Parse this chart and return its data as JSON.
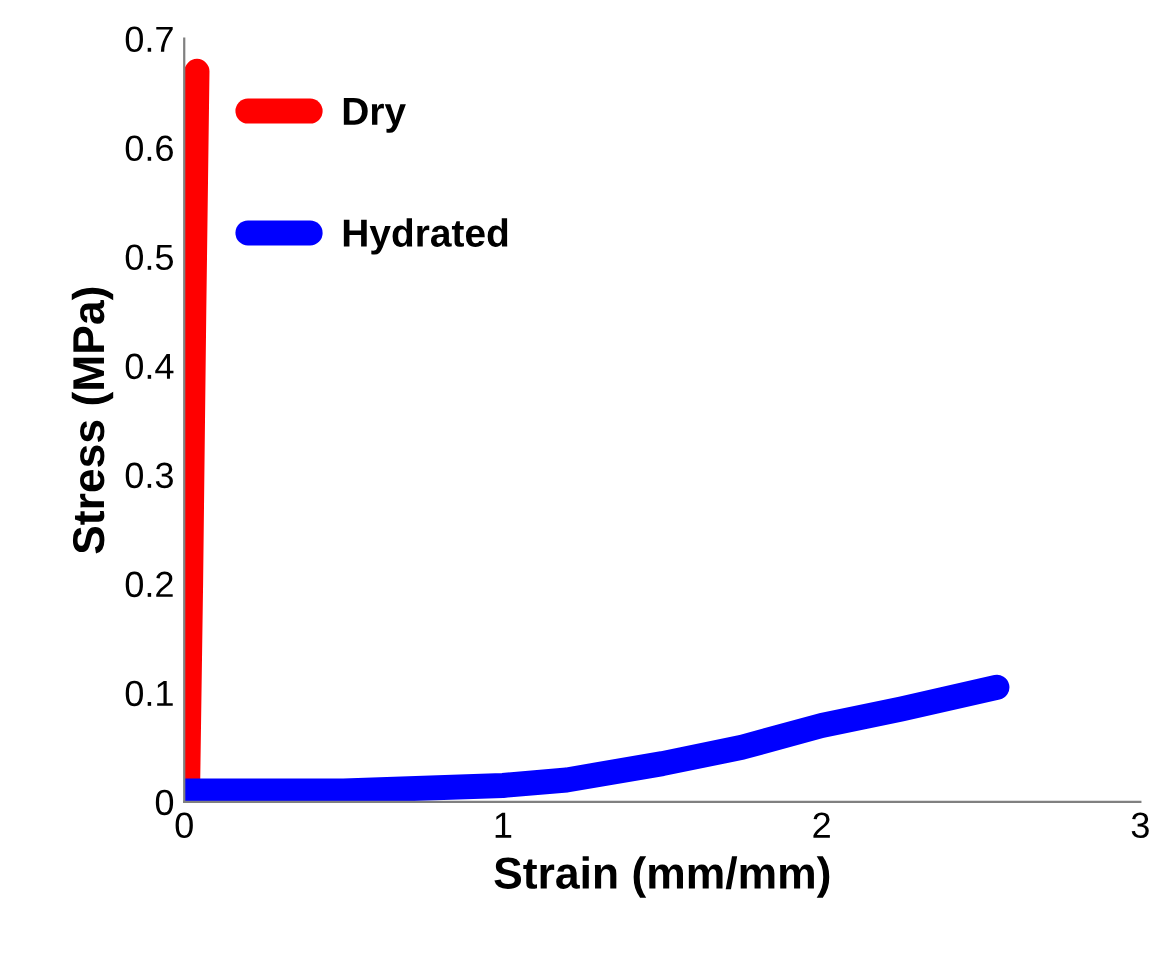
{
  "chart_data": {
    "type": "line",
    "xlabel": "Strain (mm/mm)",
    "ylabel": "Stress (MPa)",
    "xlim": [
      0,
      3
    ],
    "ylim": [
      0,
      0.7
    ],
    "xticks": [
      0,
      1,
      2,
      3
    ],
    "yticks": [
      0,
      0.1,
      0.2,
      0.3,
      0.4,
      0.5,
      0.6,
      0.7
    ],
    "grid": false,
    "legend": "top left",
    "line_style": "solid",
    "series": [
      {
        "name": "Dry",
        "color": "#ff0000",
        "x": [
          0.01,
          0.02,
          0.03,
          0.04
        ],
        "values": [
          0.0,
          0.2,
          0.45,
          0.67
        ]
      },
      {
        "name": "Hydrated",
        "color": "#0000ff",
        "x": [
          0.0,
          0.5,
          1.0,
          1.2,
          1.5,
          1.75,
          2.0,
          2.25,
          2.55
        ],
        "values": [
          0.01,
          0.01,
          0.015,
          0.02,
          0.035,
          0.05,
          0.07,
          0.085,
          0.105
        ]
      }
    ]
  }
}
